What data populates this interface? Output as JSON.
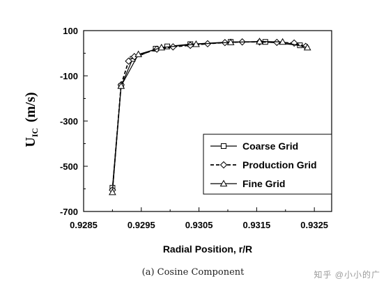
{
  "chart_data": {
    "type": "line",
    "title": "",
    "xlabel": "Radial Position, r/R",
    "ylabel": "U",
    "ylabel_subscript": "IC",
    "ylabel_unit": "(m/s)",
    "xlim": [
      0.9285,
      0.9328
    ],
    "ylim": [
      -700,
      100
    ],
    "xticks": [
      "0.9285",
      "0.9295",
      "0.9305",
      "0.9315",
      "0.9325"
    ],
    "xtick_values": [
      0.9285,
      0.9295,
      0.9305,
      0.9315,
      0.9325
    ],
    "yticks": [
      "100",
      "-100",
      "-300",
      "-500",
      "-700"
    ],
    "ytick_values": [
      100,
      -100,
      -300,
      -500,
      -700
    ],
    "grid": false,
    "legend_position": "bottom-right",
    "series": [
      {
        "name": "Coarse Grid",
        "marker": "square",
        "dash": "solid",
        "x": [
          0.929,
          0.92915,
          0.92935,
          0.92975,
          0.92995,
          0.93035,
          0.93105,
          0.93165,
          0.93225
        ],
        "y": [
          -595,
          -145,
          -25,
          20,
          30,
          40,
          50,
          50,
          35
        ]
      },
      {
        "name": "Production Grid",
        "marker": "diamond",
        "dash": "dashed",
        "x": [
          0.929,
          0.92915,
          0.92928,
          0.92938,
          0.92977,
          0.93005,
          0.93035,
          0.93065,
          0.93095,
          0.93125,
          0.93155,
          0.93185,
          0.93215,
          0.93235
        ],
        "y": [
          -605,
          -140,
          -35,
          -15,
          18,
          28,
          35,
          42,
          47,
          50,
          50,
          48,
          45,
          30
        ]
      },
      {
        "name": "Fine Grid",
        "marker": "triangle",
        "dash": "solid",
        "x": [
          0.929,
          0.92915,
          0.92945,
          0.92985,
          0.93045,
          0.93105,
          0.93155,
          0.93195,
          0.93238
        ],
        "y": [
          -615,
          -145,
          -5,
          25,
          40,
          48,
          52,
          50,
          25
        ]
      }
    ]
  },
  "caption": "(a) Cosine Component",
  "watermark": "知乎 @小小的广"
}
